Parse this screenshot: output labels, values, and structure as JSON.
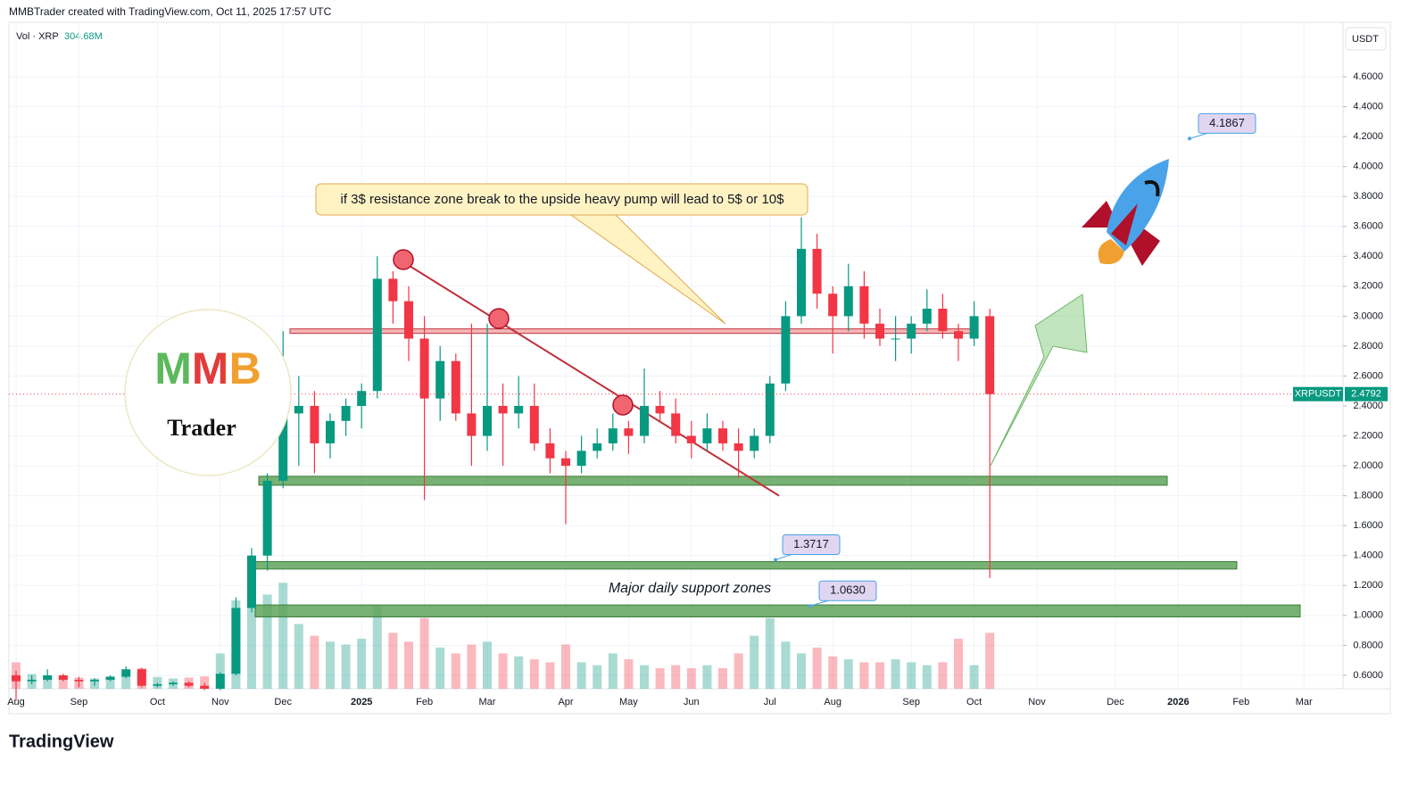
{
  "header": {
    "caption": "MMBTrader created with TradingView.com, Oct 11, 2025 17:57 UTC",
    "volume_label": "Vol · XRP",
    "volume_value": "304.68M",
    "currency": "USDT",
    "brand": "TradingView"
  },
  "logo": {
    "mark": "MMB",
    "name": "Trader"
  },
  "chart_data": {
    "type": "candlestick",
    "symbol": "XRPUSDT",
    "last_price": 2.4792,
    "categories": [
      "Aug",
      null,
      null,
      null,
      "Sep",
      null,
      null,
      null,
      null,
      "Oct",
      null,
      null,
      null,
      "Nov",
      null,
      null,
      null,
      "Dec",
      null,
      null,
      null,
      null,
      "2025",
      null,
      null,
      null,
      "Feb",
      null,
      null,
      null,
      "Mar",
      null,
      null,
      null,
      null,
      "Apr",
      null,
      null,
      null,
      "May",
      null,
      null,
      null,
      "Jun",
      null,
      null,
      null,
      null,
      "Jul",
      null,
      null,
      null,
      "Aug",
      null,
      null,
      null,
      null,
      "Sep",
      null,
      null,
      null,
      "Oct",
      null,
      null,
      null,
      "Nov",
      null,
      null,
      null,
      null,
      "Dec",
      null,
      null,
      null,
      "2026",
      null,
      null,
      null,
      "Feb",
      null,
      null,
      null,
      "Mar",
      null
    ],
    "open": [
      0.6,
      0.56,
      0.57,
      0.6,
      0.57,
      0.56,
      0.57,
      0.59,
      0.64,
      0.53,
      0.54,
      0.55,
      0.53,
      0.51,
      0.61,
      1.05,
      1.4,
      1.9,
      2.35,
      2.4,
      2.15,
      2.3,
      2.4,
      2.5,
      3.25,
      3.1,
      2.85,
      2.45,
      2.7,
      2.35,
      2.2,
      2.4,
      2.35,
      2.4,
      2.15,
      2.05,
      2.0,
      2.1,
      2.15,
      2.25,
      2.2,
      2.4,
      2.35,
      2.2,
      2.15,
      2.25,
      2.15,
      2.1,
      2.2,
      2.55,
      3.0,
      3.45,
      3.15,
      3.0,
      3.2,
      2.95,
      2.85,
      2.85,
      2.95,
      3.05,
      2.9,
      2.85,
      3.0,
      null,
      null,
      null,
      null,
      null,
      null,
      null,
      null,
      null,
      null,
      null,
      null,
      null,
      null,
      null,
      null,
      null,
      null,
      null,
      null,
      null
    ],
    "high": [
      0.63,
      0.6,
      0.64,
      0.61,
      0.59,
      0.58,
      0.6,
      0.66,
      0.65,
      0.55,
      0.56,
      0.56,
      0.55,
      0.62,
      1.12,
      1.45,
      1.95,
      2.9,
      2.6,
      2.5,
      2.35,
      2.45,
      2.55,
      3.4,
      3.3,
      3.2,
      3.0,
      2.8,
      2.75,
      2.95,
      2.95,
      2.55,
      2.6,
      2.55,
      2.25,
      2.1,
      2.2,
      2.25,
      2.35,
      2.3,
      2.65,
      2.5,
      2.45,
      2.3,
      2.35,
      2.3,
      2.25,
      2.25,
      2.6,
      3.1,
      3.66,
      3.55,
      3.2,
      3.35,
      3.3,
      3.05,
      3.0,
      3.0,
      3.18,
      3.15,
      2.95,
      3.1,
      3.05,
      null,
      null,
      null,
      null,
      null,
      null,
      null,
      null,
      null,
      null,
      null,
      null,
      null,
      null,
      null,
      null,
      null,
      null,
      null,
      null,
      null
    ],
    "low": [
      0.43,
      0.54,
      0.56,
      0.56,
      0.52,
      0.53,
      0.56,
      0.58,
      0.52,
      0.52,
      0.53,
      0.52,
      0.5,
      0.5,
      0.6,
      1.02,
      1.3,
      1.85,
      2.0,
      1.95,
      2.05,
      2.2,
      2.25,
      2.45,
      2.95,
      2.7,
      1.77,
      2.3,
      2.3,
      2.0,
      2.1,
      2.0,
      2.25,
      2.1,
      1.95,
      1.61,
      1.95,
      2.05,
      2.1,
      2.08,
      2.15,
      2.3,
      2.15,
      2.05,
      2.1,
      2.1,
      1.92,
      2.05,
      2.15,
      2.5,
      2.95,
      3.05,
      2.75,
      2.9,
      2.85,
      2.8,
      2.7,
      2.75,
      2.9,
      2.85,
      2.7,
      2.8,
      1.25,
      null,
      null,
      null,
      null,
      null,
      null,
      null,
      null,
      null,
      null,
      null,
      null,
      null,
      null,
      null,
      null,
      null,
      null,
      null,
      null,
      null
    ],
    "close": [
      0.56,
      0.57,
      0.6,
      0.57,
      0.56,
      0.57,
      0.59,
      0.64,
      0.53,
      0.54,
      0.55,
      0.53,
      0.51,
      0.61,
      1.05,
      1.4,
      1.9,
      2.35,
      2.4,
      2.15,
      2.3,
      2.4,
      2.5,
      3.25,
      3.1,
      2.85,
      2.45,
      2.7,
      2.35,
      2.2,
      2.4,
      2.35,
      2.4,
      2.15,
      2.05,
      2.0,
      2.1,
      2.15,
      2.25,
      2.2,
      2.4,
      2.35,
      2.2,
      2.15,
      2.25,
      2.15,
      2.1,
      2.2,
      2.55,
      3.0,
      3.45,
      3.15,
      3.0,
      3.2,
      2.95,
      2.85,
      2.85,
      2.95,
      3.05,
      2.9,
      2.85,
      3.0,
      2.4792,
      null,
      null,
      null,
      null,
      null,
      null,
      null,
      null,
      null,
      null,
      null,
      null,
      null,
      null,
      null,
      null,
      null,
      null,
      null,
      null,
      null
    ],
    "volume": [
      900,
      500,
      450,
      400,
      380,
      350,
      420,
      600,
      700,
      400,
      350,
      380,
      420,
      1200,
      3000,
      3500,
      3200,
      3600,
      2200,
      1800,
      1600,
      1500,
      1700,
      2800,
      1900,
      1600,
      2400,
      1400,
      1200,
      1500,
      1600,
      1200,
      1100,
      1000,
      900,
      1500,
      900,
      800,
      1200,
      1000,
      800,
      700,
      800,
      700,
      800,
      700,
      1200,
      1800,
      2400,
      1600,
      1200,
      1400,
      1100,
      1000,
      900,
      900,
      1000,
      900,
      800,
      900,
      1700,
      800,
      1900,
      null,
      null,
      null,
      null,
      null,
      null,
      null,
      null,
      null,
      null,
      null,
      null,
      null,
      null,
      null,
      null,
      null,
      null,
      null,
      null,
      null
    ],
    "volume_ylim": [
      0,
      4000
    ],
    "up_color": "#089981",
    "down_color": "#f23645",
    "ylim": [
      0.51,
      4.785
    ],
    "yticks": [
      {
        "value": 0.6,
        "label": "0.6000"
      },
      {
        "value": 0.8,
        "label": "0.8000"
      },
      {
        "value": 1.0,
        "label": "1.0000"
      },
      {
        "value": 1.2,
        "label": "1.2000"
      },
      {
        "value": 1.4,
        "label": "1.4000"
      },
      {
        "value": 1.6,
        "label": "1.6000"
      },
      {
        "value": 1.8,
        "label": "1.8000"
      },
      {
        "value": 2.0,
        "label": "2.0000"
      },
      {
        "value": 2.2,
        "label": "2.2000"
      },
      {
        "value": 2.4,
        "label": "2.4000"
      },
      {
        "value": 2.6,
        "label": "2.6000"
      },
      {
        "value": 2.8,
        "label": "2.8000"
      },
      {
        "value": 3.0,
        "label": "3.0000"
      },
      {
        "value": 3.2,
        "label": "3.2000"
      },
      {
        "value": 3.4,
        "label": "3.4000"
      },
      {
        "value": 3.6,
        "label": "3.6000"
      },
      {
        "value": 3.8,
        "label": "3.8000"
      },
      {
        "value": 4.0,
        "label": "4.0000"
      },
      {
        "value": 4.2,
        "label": "4.2000"
      },
      {
        "value": 4.4,
        "label": "4.4000"
      },
      {
        "value": 4.6,
        "label": "4.6000"
      }
    ],
    "grid": true,
    "resistance": 2.9,
    "support_zones": [
      [
        1.87,
        1.93
      ],
      [
        1.31,
        1.36
      ],
      [
        0.99,
        1.07
      ]
    ],
    "trendline": [
      3.38,
      1.8
    ],
    "price_labels": [
      4.1867,
      1.3717,
      1.063
    ],
    "price_label_text": [
      "4.1867",
      "1.3717",
      "1.0630"
    ],
    "annotation": "if 3$ resistance zone break to the upside heavy pump will lead to 5$ or 10$",
    "zone_note": "Major daily support zones"
  }
}
